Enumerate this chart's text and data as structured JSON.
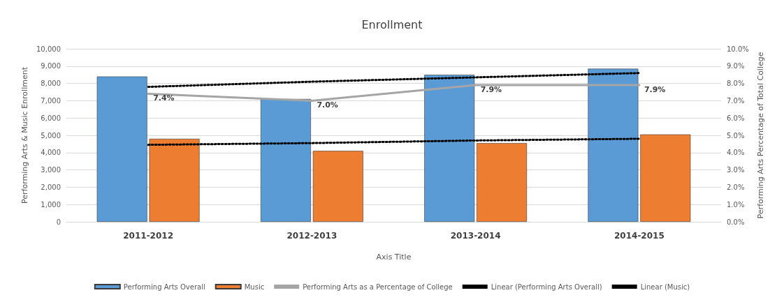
{
  "chart_data": {
    "type": "bar",
    "title": "Enrollment",
    "xlabel": "Axis Title",
    "ylabel": "Performing Arts & Music Enrollment",
    "y2label": "Performing Arts Percentage of Total College",
    "categories": [
      "2011-2012",
      "2012-2013",
      "2013-2014",
      "2014-2015"
    ],
    "series": [
      {
        "name": "Performing Arts Overall",
        "color": "#5b9bd5",
        "values": [
          8400,
          7100,
          8500,
          8850
        ]
      },
      {
        "name": "Music",
        "color": "#ed7d31",
        "values": [
          4800,
          4100,
          4550,
          5050
        ]
      },
      {
        "name": "Performing Arts as a Percentage of College",
        "type": "line",
        "axis": "y2",
        "color": "#a5a5a5",
        "line_style": "solid",
        "marker": "none",
        "values": [
          7.4,
          7.0,
          7.9,
          7.9
        ],
        "value_labels": [
          "7.4%",
          "7.0%",
          "7.9%",
          "7.9%"
        ]
      },
      {
        "name": "Linear (Performing Arts Overall)",
        "type": "line",
        "color": "#000000",
        "line_style": "dotted",
        "marker": "none",
        "values": [
          7800,
          8100,
          8350,
          8600
        ]
      },
      {
        "name": "Linear (Music)",
        "type": "line",
        "color": "#000000",
        "line_style": "dotted",
        "marker": "none",
        "values": [
          4450,
          4550,
          4700,
          4800
        ]
      }
    ],
    "ylim": [
      0,
      10000
    ],
    "yticks": [
      {
        "value": 0,
        "label": "0"
      },
      {
        "value": 1000,
        "label": "1,000"
      },
      {
        "value": 2000,
        "label": "2,000"
      },
      {
        "value": 3000,
        "label": "3,000"
      },
      {
        "value": 4000,
        "label": "4,000"
      },
      {
        "value": 5000,
        "label": "5,000"
      },
      {
        "value": 6000,
        "label": "6,000"
      },
      {
        "value": 7000,
        "label": "7,000"
      },
      {
        "value": 8000,
        "label": "8,000"
      },
      {
        "value": 9000,
        "label": "9,000"
      },
      {
        "value": 10000,
        "label": "10,000"
      }
    ],
    "y2lim": [
      0,
      10
    ],
    "y2ticks": [
      {
        "value": 0,
        "label": "0.0%"
      },
      {
        "value": 1,
        "label": "1.0%"
      },
      {
        "value": 2,
        "label": "2.0%"
      },
      {
        "value": 3,
        "label": "3.0%"
      },
      {
        "value": 4,
        "label": "4.0%"
      },
      {
        "value": 5,
        "label": "5.0%"
      },
      {
        "value": 6,
        "label": "6.0%"
      },
      {
        "value": 7,
        "label": "7.0%"
      },
      {
        "value": 8,
        "label": "8.0%"
      },
      {
        "value": 9,
        "label": "9.0%"
      },
      {
        "value": 10,
        "label": "10.0%"
      }
    ],
    "grid": "y",
    "legend": "bottom"
  }
}
